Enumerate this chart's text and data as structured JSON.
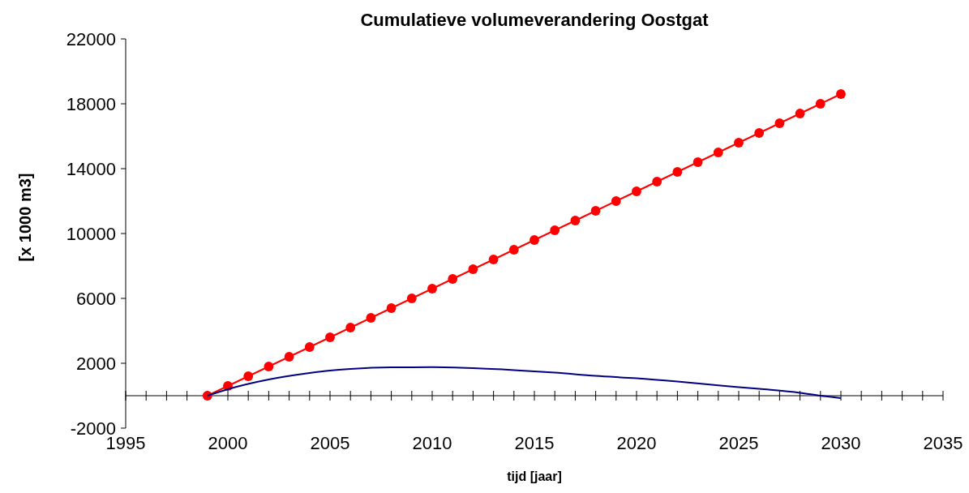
{
  "chart_data": {
    "type": "line",
    "title": "Cumulatieve volumeverandering Oostgat",
    "xlabel": "tijd [jaar]",
    "ylabel": "[x 1000 m3]",
    "xlim": [
      1995,
      2035
    ],
    "ylim": [
      -2000,
      22000
    ],
    "xticks": [
      1995,
      {
        "value": 1996,
        "label": null
      },
      {
        "value": 1997,
        "label": null
      },
      {
        "value": 1998,
        "label": null
      },
      {
        "value": 1999,
        "label": null
      },
      2000,
      {
        "value": 2001,
        "label": null
      },
      {
        "value": 2002,
        "label": null
      },
      {
        "value": 2003,
        "label": null
      },
      {
        "value": 2004,
        "label": null
      },
      2005,
      {
        "value": 2006,
        "label": null
      },
      {
        "value": 2007,
        "label": null
      },
      {
        "value": 2008,
        "label": null
      },
      {
        "value": 2009,
        "label": null
      },
      2010,
      {
        "value": 2011,
        "label": null
      },
      {
        "value": 2012,
        "label": null
      },
      {
        "value": 2013,
        "label": null
      },
      {
        "value": 2014,
        "label": null
      },
      2015,
      {
        "value": 2016,
        "label": null
      },
      {
        "value": 2017,
        "label": null
      },
      {
        "value": 2018,
        "label": null
      },
      {
        "value": 2019,
        "label": null
      },
      2020,
      {
        "value": 2021,
        "label": null
      },
      {
        "value": 2022,
        "label": null
      },
      {
        "value": 2023,
        "label": null
      },
      {
        "value": 2024,
        "label": null
      },
      2025,
      {
        "value": 2026,
        "label": null
      },
      {
        "value": 2027,
        "label": null
      },
      {
        "value": 2028,
        "label": null
      },
      {
        "value": 2029,
        "label": null
      },
      2030,
      {
        "value": 2031,
        "label": null
      },
      {
        "value": 2032,
        "label": null
      },
      {
        "value": 2033,
        "label": null
      },
      {
        "value": 2034,
        "label": null
      },
      2035
    ],
    "yticks": [
      -2000,
      2000,
      6000,
      10000,
      14000,
      18000,
      22000
    ],
    "series": [
      {
        "color": "#ff0000",
        "marker": "circle",
        "x": [
          1999,
          2000,
          2001,
          2002,
          2003,
          2004,
          2005,
          2006,
          2007,
          2008,
          2009,
          2010,
          2011,
          2012,
          2013,
          2014,
          2015,
          2016,
          2017,
          2018,
          2019,
          2020,
          2021,
          2022,
          2023,
          2024,
          2025,
          2026,
          2027,
          2028,
          2029,
          2030
        ],
        "values": [
          0,
          600,
          1200,
          1800,
          2400,
          3000,
          3600,
          4200,
          4800,
          5400,
          6000,
          6600,
          7200,
          7800,
          8400,
          9000,
          9600,
          10200,
          10800,
          11400,
          12000,
          12600,
          13200,
          13800,
          14400,
          15000,
          15600,
          16200,
          16800,
          17400,
          18000,
          18600
        ]
      },
      {
        "color": "#000080",
        "marker": "none",
        "x": [
          1999,
          2000,
          2002,
          2004,
          2005,
          2006,
          2008,
          2010,
          2012,
          2014,
          2016,
          2018,
          2020,
          2022,
          2024,
          2026,
          2028,
          2029,
          2030
        ],
        "values": [
          0,
          400,
          1000,
          1400,
          1550,
          1650,
          1750,
          1760,
          1700,
          1580,
          1420,
          1220,
          1070,
          870,
          640,
          420,
          180,
          0,
          -150
        ]
      }
    ]
  }
}
